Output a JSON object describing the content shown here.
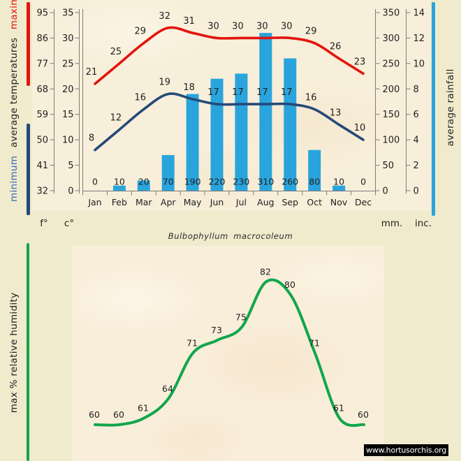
{
  "page": {
    "title": "Bulbophyllum macrocoleum",
    "watermark": "www.hortusorchis.org"
  },
  "climate_chart": {
    "legend_left": {
      "minimum": "minimum",
      "middle": "average temperatures",
      "maximum": "maximum"
    },
    "legend_right": "average rainfall",
    "axis_units": {
      "fahrenheit": "f°",
      "celsius": "c°",
      "millimeters": "mm.",
      "inches": "inc."
    }
  },
  "humidity_chart": {
    "legend": "max % relative humidity"
  },
  "chart_data": [
    {
      "type": "bar",
      "name": "climate-diagram",
      "title": "Bulbophyllum macrocoleum",
      "categories": [
        "Jan",
        "Feb",
        "Mar",
        "Apr",
        "May",
        "Jun",
        "Jul",
        "Aug",
        "Sep",
        "Oct",
        "Nov",
        "Dec"
      ],
      "series": [
        {
          "name": "maximum average temperature (C)",
          "type": "line",
          "color": "#e2150e",
          "values": [
            21,
            25,
            29,
            32,
            31,
            30,
            30,
            30,
            30,
            29,
            26,
            23
          ]
        },
        {
          "name": "minimum average temperature (C)",
          "type": "line",
          "color": "#254a78",
          "values": [
            8,
            12,
            16,
            19,
            18,
            17,
            17,
            17,
            17,
            16,
            13,
            10
          ]
        },
        {
          "name": "average rainfall (mm)",
          "type": "bar",
          "color": "#2aa4dc",
          "values": [
            0,
            10,
            20,
            70,
            190,
            220,
            230,
            310,
            260,
            80,
            10,
            0
          ]
        }
      ],
      "axes": {
        "fahrenheit_ticks": [
          95,
          86,
          77,
          68,
          59,
          50,
          41,
          32
        ],
        "celsius_ticks": [
          35,
          30,
          25,
          20,
          15,
          10,
          5,
          0
        ],
        "mm_ticks": [
          350,
          300,
          250,
          200,
          150,
          100,
          50,
          0
        ],
        "inch_ticks": [
          14,
          12,
          10,
          8,
          6,
          4,
          2,
          0
        ]
      },
      "ylim_celsius": [
        0,
        35
      ],
      "ylim_mm": [
        0,
        350
      ],
      "grid": false,
      "legend_position": "rotated-left-and-right"
    },
    {
      "type": "line",
      "name": "humidity-curve",
      "title": "max % relative humidity",
      "categories": [
        "Jan",
        "Feb",
        "Mar",
        "Apr",
        "May",
        "Jun",
        "Jul",
        "Aug",
        "Sep",
        "Oct",
        "Nov",
        "Dec"
      ],
      "values": [
        60,
        60,
        61,
        64,
        71,
        73,
        75,
        82,
        80,
        71,
        61,
        60
      ],
      "color": "#12a64c",
      "ylim": [
        58,
        84
      ],
      "grid": false
    }
  ],
  "colors": {
    "page_background": "#f0ebcd",
    "panel_background": "#f8efda",
    "max_temp": "#e2150e",
    "min_temp": "#254a78",
    "rainfall": "#2aa4dc",
    "humidity": "#12a64c",
    "axis_line": "#7c7c7c",
    "text": "#1f1f1f"
  }
}
